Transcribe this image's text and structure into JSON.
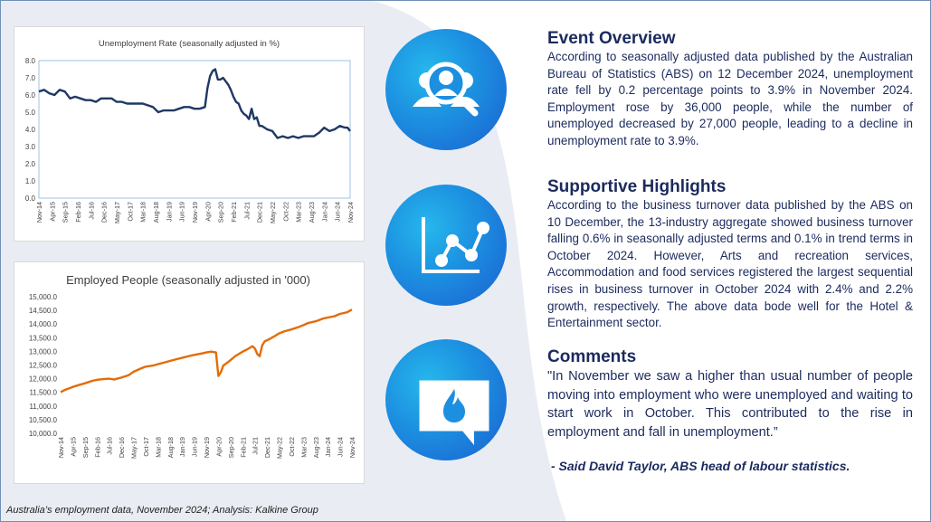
{
  "footer": {
    "source": "Australia’s employment data, November 2024; Analysis: Kalkine Group"
  },
  "sections": {
    "overview": {
      "title": "Event Overview",
      "body": "According to seasonally adjusted data published by the Australian Bureau of Statistics (ABS) on 12 December 2024, unemployment rate fell by 0.2 percentage points to 3.9% in November 2024. Employment rose by 36,000 people, while the number of unemployed decreased by 27,000 people, leading to a decline in unemployment rate to 3.9%."
    },
    "highlights": {
      "title": "Supportive Highlights",
      "body": "According to the business turnover data published by the ABS on 10 December, the 13-industry aggregate showed business turnover falling 0.6% in seasonally adjusted terms and 0.1% in trend terms in October 2024. However, Arts and recreation services, Accommodation and food services registered the largest sequential rises in business turnover in October 2024 with 2.4% and 2.2% growth, respectively. The above data bode well for the Hotel & Entertainment sector."
    },
    "comments": {
      "title": "Comments",
      "body": "\"In November we saw a higher than usual number of people moving into employment who were unemployed and waiting to start work in October. This contributed to the rise in employment and fall in unemployment.”",
      "author": "- Said David Taylor, ABS head of labour statistics."
    }
  },
  "icons": {
    "overview": "people-search-icon",
    "highlights": "line-chart-icon",
    "comments": "speech-bubble-flame-icon"
  },
  "colors": {
    "unemployment_line": "#1f3864",
    "employment_line": "#e36c09",
    "heading_text": "#1b2a5e",
    "icon_circle": "#1c8fe0"
  },
  "chart_data": [
    {
      "type": "line",
      "title": "Unemployment Rate (seasonally adjusted in %)",
      "xlabel": "",
      "ylabel": "",
      "ylim": [
        0,
        8
      ],
      "yticks": [
        "0.0",
        "1.0",
        "2.0",
        "3.0",
        "4.0",
        "5.0",
        "6.0",
        "7.0",
        "8.0"
      ],
      "x_tick_labels": [
        "Nov-14",
        "Apr-15",
        "Sep-15",
        "Feb-16",
        "Jul-16",
        "Dec-16",
        "May-17",
        "Oct-17",
        "Mar-18",
        "Aug-18",
        "Jan-19",
        "Jun-19",
        "Nov-19",
        "Apr-20",
        "Sep-20",
        "Feb-21",
        "Jul-21",
        "Dec-21",
        "May-22",
        "Oct-22",
        "Mar-23",
        "Aug-23",
        "Jan-24",
        "Jun-24",
        "Nov-24"
      ],
      "grid": false,
      "series": [
        {
          "x": [
            "Nov-14",
            "Jan-15",
            "Mar-15",
            "May-15",
            "Jul-15",
            "Sep-15",
            "Nov-15",
            "Jan-16",
            "Mar-16",
            "May-16",
            "Jul-16",
            "Sep-16",
            "Nov-16",
            "Jan-17",
            "Mar-17",
            "May-17",
            "Jul-17",
            "Sep-17",
            "Nov-17",
            "Jan-18",
            "Mar-18",
            "May-18",
            "Jul-18",
            "Sep-18",
            "Nov-18",
            "Jan-19",
            "Mar-19",
            "May-19",
            "Jul-19",
            "Sep-19",
            "Nov-19",
            "Jan-20",
            "Mar-20",
            "Apr-20",
            "May-20",
            "Jun-20",
            "Jul-20",
            "Aug-20",
            "Sep-20",
            "Oct-20",
            "Nov-20",
            "Dec-20",
            "Jan-21",
            "Feb-21",
            "Mar-21",
            "Apr-21",
            "May-21",
            "Jun-21",
            "Jul-21",
            "Aug-21",
            "Sep-21",
            "Oct-21",
            "Nov-21",
            "Dec-21",
            "Jan-22",
            "Mar-22",
            "May-22",
            "Jul-22",
            "Sep-22",
            "Nov-22",
            "Jan-23",
            "Mar-23",
            "May-23",
            "Jul-23",
            "Sep-23",
            "Nov-23",
            "Jan-24",
            "Mar-24",
            "May-24",
            "Jul-24",
            "Sep-24",
            "Oct-24",
            "Nov-24"
          ],
          "y": [
            6.2,
            6.3,
            6.1,
            6.0,
            6.3,
            6.2,
            5.8,
            5.9,
            5.8,
            5.7,
            5.7,
            5.6,
            5.8,
            5.8,
            5.8,
            5.6,
            5.6,
            5.5,
            5.5,
            5.5,
            5.5,
            5.4,
            5.3,
            5.0,
            5.1,
            5.1,
            5.1,
            5.2,
            5.3,
            5.3,
            5.2,
            5.2,
            5.3,
            6.4,
            7.1,
            7.4,
            7.5,
            6.9,
            6.9,
            7.0,
            6.8,
            6.6,
            6.3,
            5.9,
            5.6,
            5.5,
            5.1,
            4.9,
            4.8,
            4.6,
            5.2,
            4.6,
            4.7,
            4.2,
            4.2,
            4.0,
            3.9,
            3.5,
            3.6,
            3.5,
            3.6,
            3.5,
            3.6,
            3.6,
            3.6,
            3.8,
            4.1,
            3.9,
            4.0,
            4.2,
            4.1,
            4.1,
            3.9
          ]
        }
      ]
    },
    {
      "type": "line",
      "title": "Employed People (seasonally adjusted in '000)",
      "xlabel": "",
      "ylabel": "",
      "ylim": [
        10000,
        15000
      ],
      "yticks": [
        "10,000.0",
        "10,500.0",
        "11,000.0",
        "11,500.0",
        "12,000.0",
        "12,500.0",
        "13,000.0",
        "13,500.0",
        "14,000.0",
        "14,500.0",
        "15,000.0"
      ],
      "x_tick_labels": [
        "Nov-14",
        "Apr-15",
        "Sep-15",
        "Feb-16",
        "Jul-16",
        "Dec-16",
        "May-17",
        "Oct-17",
        "Mar-18",
        "Aug-18",
        "Jan-19",
        "Jun-19",
        "Nov-19",
        "Apr-20",
        "Sep-20",
        "Feb-21",
        "Jul-21",
        "Dec-21",
        "May-22",
        "Oct-22",
        "Mar-23",
        "Aug-23",
        "Jan-24",
        "Jun-24",
        "Nov-24"
      ],
      "grid": false,
      "series": [
        {
          "x": [
            "Nov-14",
            "Jan-15",
            "Apr-15",
            "Jul-15",
            "Sep-15",
            "Dec-15",
            "Feb-16",
            "May-16",
            "Jul-16",
            "Sep-16",
            "Dec-16",
            "Mar-17",
            "May-17",
            "Aug-17",
            "Oct-17",
            "Jan-18",
            "Mar-18",
            "Jun-18",
            "Aug-18",
            "Nov-18",
            "Jan-19",
            "Apr-19",
            "Jun-19",
            "Sep-19",
            "Nov-19",
            "Jan-20",
            "Mar-20",
            "Apr-20",
            "May-20",
            "Jun-20",
            "Aug-20",
            "Sep-20",
            "Nov-20",
            "Feb-21",
            "Apr-21",
            "Jun-21",
            "Jul-21",
            "Aug-21",
            "Sep-21",
            "Oct-21",
            "Nov-21",
            "Jan-22",
            "Mar-22",
            "May-22",
            "Jul-22",
            "Oct-22",
            "Jan-23",
            "Mar-23",
            "May-23",
            "Aug-23",
            "Nov-23",
            "Jan-24",
            "Apr-24",
            "Jun-24",
            "Sep-24",
            "Nov-24"
          ],
          "y": [
            11510,
            11600,
            11700,
            11780,
            11830,
            11920,
            11960,
            11990,
            12000,
            11970,
            12040,
            12130,
            12250,
            12370,
            12440,
            12480,
            12530,
            12600,
            12650,
            12720,
            12760,
            12830,
            12870,
            12920,
            12960,
            12990,
            12960,
            12100,
            12240,
            12480,
            12610,
            12680,
            12830,
            12990,
            13080,
            13190,
            13110,
            12900,
            12820,
            13210,
            13360,
            13450,
            13550,
            13660,
            13730,
            13800,
            13890,
            13960,
            14040,
            14100,
            14200,
            14240,
            14290,
            14370,
            14430,
            14530
          ]
        }
      ]
    }
  ]
}
